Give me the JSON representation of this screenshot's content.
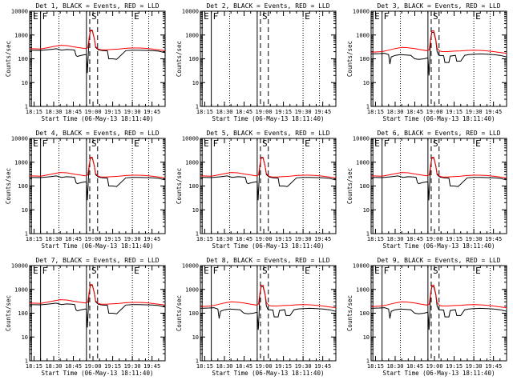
{
  "colors": {
    "events": "#000000",
    "lld": "#ff0000",
    "background": "#ffffff"
  },
  "shared": {
    "ylabel": "Counts/sec",
    "xlabel": "Start Time (06-May-13 18:11:40)",
    "x_ticks": [
      "18:15",
      "18:30",
      "18:45",
      "19:00",
      "19:15",
      "19:30",
      "19:45"
    ],
    "x_tick_minutes": [
      15,
      30,
      45,
      60,
      75,
      90,
      105
    ],
    "x_range_minutes": [
      11.67,
      115
    ],
    "y_scale": "log",
    "y_range": [
      1,
      10000
    ],
    "y_ticks": [
      "1",
      "10",
      "100",
      "1000",
      "10000"
    ],
    "y_tick_values": [
      1,
      10,
      100,
      1000,
      10000
    ],
    "event_markers": [
      {
        "label": "E",
        "minute": 13.0,
        "style": "solid"
      },
      {
        "label": "F",
        "minute": 20.0,
        "style": "solid"
      },
      {
        "label": "",
        "minute": 34.0,
        "style": "dotted"
      },
      {
        "label": "",
        "minute": 55.0,
        "style": "solid"
      },
      {
        "label": "S",
        "minute": 57.5,
        "style": "dashed"
      },
      {
        "label": "",
        "minute": 63.5,
        "style": "dashed"
      },
      {
        "label": "E",
        "minute": 90.0,
        "style": "dotted"
      },
      {
        "label": "",
        "minute": 102.5,
        "style": "dotted"
      }
    ]
  },
  "chart_data": [
    {
      "type": "line",
      "title": "Det 1, BLACK = Events, RED = LLD",
      "variant": "a",
      "ylim": [
        1,
        10000
      ]
    },
    {
      "type": "line",
      "title": "Det 2, BLACK = Events, RED = LLD",
      "variant": "empty",
      "ylim": [
        1,
        10000
      ]
    },
    {
      "type": "line",
      "title": "Det 3, BLACK = Events, RED = LLD",
      "variant": "b",
      "ylim": [
        1,
        10000
      ]
    },
    {
      "type": "line",
      "title": "Det 4, BLACK = Events, RED = LLD",
      "variant": "a",
      "ylim": [
        1,
        10000
      ]
    },
    {
      "type": "line",
      "title": "Det 5, BLACK = Events, RED = LLD",
      "variant": "a",
      "ylim": [
        1,
        10000
      ]
    },
    {
      "type": "line",
      "title": "Det 6, BLACK = Events, RED = LLD",
      "variant": "a",
      "ylim": [
        1,
        10000
      ]
    },
    {
      "type": "line",
      "title": "Det 7, BLACK = Events, RED = LLD",
      "variant": "a",
      "ylim": [
        1,
        10000
      ]
    },
    {
      "type": "line",
      "title": "Det 8, BLACK = Events, RED = LLD",
      "variant": "b",
      "ylim": [
        1,
        10000
      ]
    },
    {
      "type": "line",
      "title": "Det 9, BLACK = Events, RED = LLD",
      "variant": "b",
      "ylim": [
        1,
        10000
      ]
    }
  ],
  "series_profiles": {
    "a": {
      "events": {
        "x": [
          11.7,
          20,
          25,
          28,
          32,
          36,
          40,
          44,
          46,
          47,
          48,
          49,
          50,
          51,
          54,
          55,
          55.7,
          56.3,
          57,
          58,
          59.5,
          61,
          62,
          64,
          65.5,
          66.5,
          67,
          71,
          72,
          75,
          78,
          85,
          90,
          95,
          100,
          105,
          110,
          115
        ],
        "y": [
          230,
          225,
          240,
          250,
          265,
          230,
          245,
          240,
          230,
          140,
          125,
          130,
          135,
          140,
          150,
          145,
          25,
          120,
          700,
          1500,
          1500,
          700,
          300,
          240,
          230,
          225,
          220,
          215,
          100,
          100,
          95,
          220,
          230,
          230,
          225,
          220,
          210,
          180
        ]
      },
      "lld": {
        "x": [
          11.7,
          20,
          25,
          30,
          35,
          40,
          45,
          50,
          54,
          56,
          57,
          58,
          59.5,
          61,
          62,
          64,
          66,
          70,
          75,
          80,
          85,
          90,
          95,
          100,
          105,
          110,
          115
        ],
        "y": [
          270,
          260,
          290,
          330,
          370,
          360,
          320,
          290,
          270,
          290,
          700,
          1600,
          1600,
          700,
          330,
          260,
          240,
          240,
          250,
          260,
          275,
          285,
          285,
          275,
          260,
          240,
          220
        ]
      }
    },
    "b": {
      "events": {
        "x": [
          11.7,
          18,
          22,
          25,
          26,
          27,
          30,
          34,
          38,
          42,
          44,
          45,
          48,
          52,
          55,
          55.8,
          56.4,
          57,
          58,
          59.5,
          61,
          62,
          63,
          64,
          67,
          68,
          71,
          72,
          76,
          77,
          80,
          83,
          86,
          90,
          95,
          100,
          105,
          110,
          115
        ],
        "y": [
          160,
          165,
          170,
          150,
          60,
          120,
          140,
          150,
          145,
          140,
          110,
          100,
          95,
          100,
          110,
          20,
          90,
          600,
          1300,
          1300,
          600,
          200,
          150,
          140,
          135,
          70,
          70,
          130,
          140,
          80,
          80,
          140,
          150,
          155,
          160,
          155,
          150,
          140,
          120
        ]
      },
      "lld": {
        "x": [
          11.7,
          20,
          25,
          30,
          35,
          40,
          45,
          50,
          54,
          56,
          57,
          58,
          59.5,
          61,
          62,
          64,
          66,
          70,
          75,
          80,
          85,
          90,
          95,
          100,
          105,
          110,
          115
        ],
        "y": [
          190,
          200,
          230,
          270,
          300,
          290,
          270,
          240,
          220,
          240,
          650,
          1500,
          1500,
          650,
          280,
          210,
          200,
          200,
          210,
          215,
          225,
          230,
          225,
          215,
          200,
          185,
          170
        ]
      }
    }
  }
}
